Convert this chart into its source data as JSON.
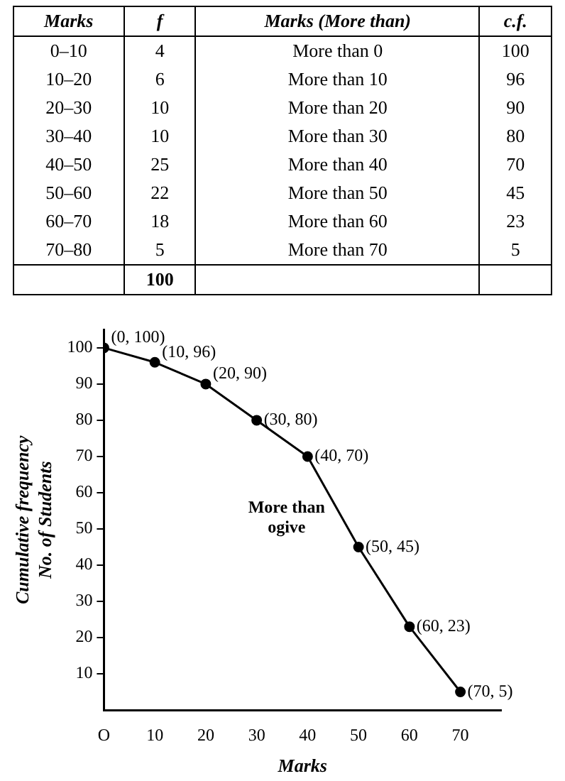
{
  "chart_data": [
    {
      "type": "other",
      "categories": [
        "Marks",
        "f",
        "Marks (More than)",
        "c.f."
      ],
      "annotations": [
        "0–10",
        "4",
        "More than 0",
        "100",
        "10–20",
        "6",
        "More than 10",
        "96",
        "20–30",
        "10",
        "More than 20",
        "90",
        "30–40",
        "10",
        "More than 30",
        "80",
        "40–50",
        "25",
        "More than 40",
        "70",
        "50–60",
        "22",
        "More than 50",
        "45",
        "60–70",
        "18",
        "More than 60",
        "23",
        "70–80",
        "5",
        "More than 70",
        "5"
      ],
      "totals": [
        "100"
      ]
    },
    {
      "type": "line",
      "xlabel": "Marks",
      "ylabel": "Cumulative frequency\nNo. of Students",
      "x": [
        0,
        10,
        20,
        30,
        40,
        50,
        60,
        70
      ],
      "series": [
        {
          "color": "#000000",
          "values": [
            100,
            96,
            90,
            80,
            70,
            45,
            23,
            5
          ],
          "value_labels": [
            "(0, 100)",
            "(10, 96)",
            "(20, 90)",
            "(30, 80)",
            "(40, 70)",
            "(50, 45)",
            "(60, 23)",
            "(70, 5)"
          ]
        }
      ],
      "xlim": [
        0,
        78
      ],
      "xticks": [
        {
          "value": 0,
          "label": "O"
        },
        10,
        20,
        30,
        40,
        50,
        60,
        70
      ],
      "ylim": [
        0,
        105
      ],
      "yticks": [
        10,
        20,
        30,
        40,
        50,
        60,
        70,
        80,
        90,
        100
      ],
      "annotations": [
        "More than\nogive"
      ],
      "marker": "circle",
      "line_style": "solid",
      "grid": false,
      "legend": false
    }
  ]
}
